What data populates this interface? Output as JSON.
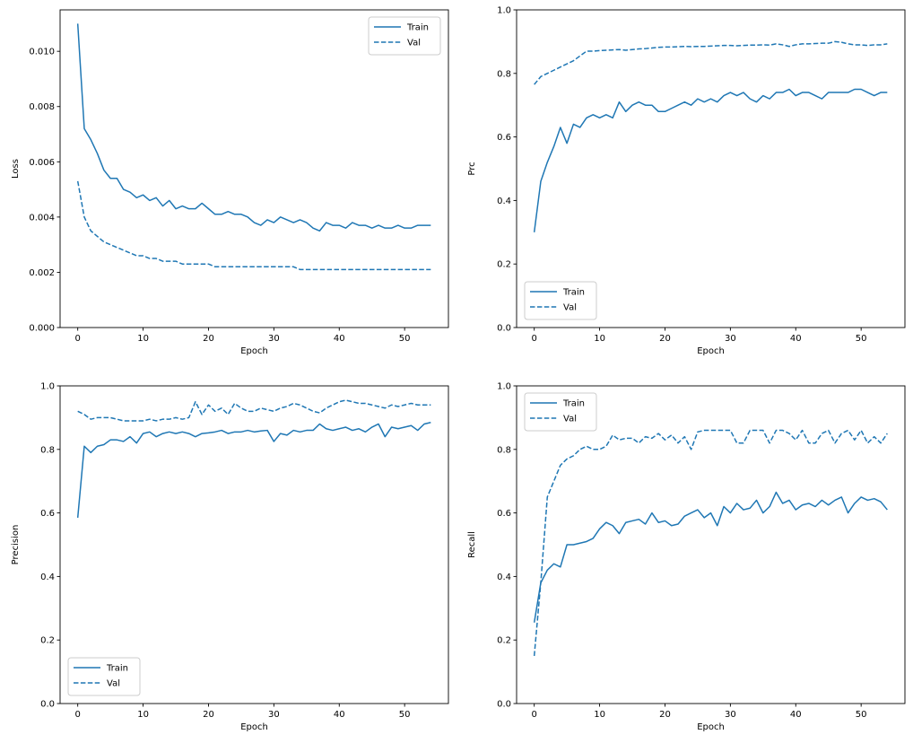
{
  "figure": {
    "background": "#ffffff",
    "accent_color": "#1f77b4"
  },
  "chart_data": [
    {
      "id": "loss",
      "type": "line",
      "title": "",
      "xlabel": "Epoch",
      "ylabel": "Loss",
      "xlim": [
        -2.7,
        56.7
      ],
      "ylim": [
        0,
        0.0115
      ],
      "xticks": [
        0,
        10,
        20,
        30,
        40,
        50
      ],
      "yticks": [
        0.0,
        0.002,
        0.004,
        0.006,
        0.008,
        0.01
      ],
      "ytick_decimals": 3,
      "grid": false,
      "legend_loc": "top-right",
      "legend_labels": [
        "Train",
        "Val"
      ],
      "series": [
        {
          "name": "Train",
          "style": "solid",
          "color": "#1f77b4",
          "values": [
            0.011,
            0.0072,
            0.0068,
            0.0063,
            0.0057,
            0.0054,
            0.0054,
            0.005,
            0.0049,
            0.0047,
            0.0048,
            0.0046,
            0.0047,
            0.0044,
            0.0046,
            0.0043,
            0.0044,
            0.0043,
            0.0043,
            0.0045,
            0.0043,
            0.0041,
            0.0041,
            0.0042,
            0.0041,
            0.0041,
            0.004,
            0.0038,
            0.0037,
            0.0039,
            0.0038,
            0.004,
            0.0039,
            0.0038,
            0.0039,
            0.0038,
            0.0036,
            0.0035,
            0.0038,
            0.0037,
            0.0037,
            0.0036,
            0.0038,
            0.0037,
            0.0037,
            0.0036,
            0.0037,
            0.0036,
            0.0036,
            0.0037,
            0.0036,
            0.0036,
            0.0037,
            0.0037,
            0.0037
          ]
        },
        {
          "name": "Val",
          "style": "dashed",
          "color": "#1f77b4",
          "values": [
            0.0053,
            0.004,
            0.0035,
            0.0033,
            0.0031,
            0.003,
            0.0029,
            0.0028,
            0.0027,
            0.0026,
            0.0026,
            0.0025,
            0.0025,
            0.0024,
            0.0024,
            0.0024,
            0.0023,
            0.0023,
            0.0023,
            0.0023,
            0.0023,
            0.0022,
            0.0022,
            0.0022,
            0.0022,
            0.0022,
            0.0022,
            0.0022,
            0.0022,
            0.0022,
            0.0022,
            0.0022,
            0.0022,
            0.0022,
            0.0021,
            0.0021,
            0.0021,
            0.0021,
            0.0021,
            0.0021,
            0.0021,
            0.0021,
            0.0021,
            0.0021,
            0.0021,
            0.0021,
            0.0021,
            0.0021,
            0.0021,
            0.0021,
            0.0021,
            0.0021,
            0.0021,
            0.0021,
            0.0021
          ]
        }
      ]
    },
    {
      "id": "prc",
      "type": "line",
      "title": "",
      "xlabel": "Epoch",
      "ylabel": "Prc",
      "xlim": [
        -2.7,
        56.7
      ],
      "ylim": [
        0,
        1.0
      ],
      "xticks": [
        0,
        10,
        20,
        30,
        40,
        50
      ],
      "yticks": [
        0.0,
        0.2,
        0.4,
        0.6,
        0.8,
        1.0
      ],
      "ytick_decimals": 1,
      "grid": false,
      "legend_loc": "bottom-left",
      "legend_labels": [
        "Train",
        "Val"
      ],
      "series": [
        {
          "name": "Train",
          "style": "solid",
          "color": "#1f77b4",
          "values": [
            0.3,
            0.46,
            0.52,
            0.57,
            0.63,
            0.58,
            0.64,
            0.63,
            0.66,
            0.67,
            0.66,
            0.67,
            0.66,
            0.71,
            0.68,
            0.7,
            0.71,
            0.7,
            0.7,
            0.68,
            0.68,
            0.69,
            0.7,
            0.71,
            0.7,
            0.72,
            0.71,
            0.72,
            0.71,
            0.73,
            0.74,
            0.73,
            0.74,
            0.72,
            0.71,
            0.73,
            0.72,
            0.74,
            0.74,
            0.75,
            0.73,
            0.74,
            0.74,
            0.73,
            0.72,
            0.74,
            0.74,
            0.74,
            0.74,
            0.75,
            0.75,
            0.74,
            0.73,
            0.74,
            0.74
          ]
        },
        {
          "name": "Val",
          "style": "dashed",
          "color": "#1f77b4",
          "values": [
            0.765,
            0.79,
            0.8,
            0.81,
            0.82,
            0.83,
            0.84,
            0.855,
            0.87,
            0.87,
            0.872,
            0.873,
            0.874,
            0.875,
            0.873,
            0.875,
            0.877,
            0.878,
            0.88,
            0.882,
            0.883,
            0.883,
            0.884,
            0.885,
            0.884,
            0.885,
            0.885,
            0.886,
            0.887,
            0.888,
            0.888,
            0.887,
            0.888,
            0.889,
            0.889,
            0.89,
            0.889,
            0.893,
            0.89,
            0.885,
            0.89,
            0.893,
            0.893,
            0.894,
            0.895,
            0.895,
            0.9,
            0.898,
            0.893,
            0.89,
            0.89,
            0.888,
            0.89,
            0.89,
            0.893
          ]
        }
      ]
    },
    {
      "id": "precision",
      "type": "line",
      "title": "",
      "xlabel": "Epoch",
      "ylabel": "Precision",
      "xlim": [
        -2.7,
        56.7
      ],
      "ylim": [
        0,
        1.0
      ],
      "xticks": [
        0,
        10,
        20,
        30,
        40,
        50
      ],
      "yticks": [
        0.0,
        0.2,
        0.4,
        0.6,
        0.8,
        1.0
      ],
      "ytick_decimals": 1,
      "grid": false,
      "legend_loc": "bottom-left",
      "legend_labels": [
        "Train",
        "Val"
      ],
      "series": [
        {
          "name": "Train",
          "style": "solid",
          "color": "#1f77b4",
          "values": [
            0.585,
            0.81,
            0.79,
            0.81,
            0.815,
            0.83,
            0.83,
            0.825,
            0.84,
            0.82,
            0.85,
            0.855,
            0.84,
            0.85,
            0.855,
            0.85,
            0.855,
            0.85,
            0.84,
            0.85,
            0.852,
            0.855,
            0.86,
            0.85,
            0.855,
            0.855,
            0.86,
            0.855,
            0.858,
            0.86,
            0.825,
            0.85,
            0.845,
            0.86,
            0.855,
            0.86,
            0.86,
            0.88,
            0.865,
            0.86,
            0.865,
            0.87,
            0.86,
            0.865,
            0.855,
            0.87,
            0.88,
            0.84,
            0.87,
            0.865,
            0.87,
            0.875,
            0.86,
            0.88,
            0.885
          ]
        },
        {
          "name": "Val",
          "style": "dashed",
          "color": "#1f77b4",
          "values": [
            0.92,
            0.91,
            0.895,
            0.9,
            0.9,
            0.9,
            0.895,
            0.89,
            0.89,
            0.89,
            0.89,
            0.895,
            0.89,
            0.895,
            0.895,
            0.9,
            0.895,
            0.9,
            0.95,
            0.91,
            0.94,
            0.92,
            0.93,
            0.91,
            0.945,
            0.93,
            0.92,
            0.92,
            0.93,
            0.925,
            0.92,
            0.93,
            0.935,
            0.945,
            0.94,
            0.93,
            0.92,
            0.915,
            0.93,
            0.94,
            0.95,
            0.955,
            0.95,
            0.945,
            0.945,
            0.94,
            0.935,
            0.93,
            0.94,
            0.935,
            0.94,
            0.945,
            0.94,
            0.94,
            0.94
          ]
        }
      ]
    },
    {
      "id": "recall",
      "type": "line",
      "title": "",
      "xlabel": "Epoch",
      "ylabel": "Recall",
      "xlim": [
        -2.7,
        56.7
      ],
      "ylim": [
        0,
        1.0
      ],
      "xticks": [
        0,
        10,
        20,
        30,
        40,
        50
      ],
      "yticks": [
        0.0,
        0.2,
        0.4,
        0.6,
        0.8,
        1.0
      ],
      "ytick_decimals": 1,
      "grid": false,
      "legend_loc": "top-left",
      "legend_labels": [
        "Train",
        "Val"
      ],
      "series": [
        {
          "name": "Train",
          "style": "solid",
          "color": "#1f77b4",
          "values": [
            0.255,
            0.38,
            0.42,
            0.44,
            0.43,
            0.5,
            0.5,
            0.505,
            0.51,
            0.52,
            0.55,
            0.57,
            0.56,
            0.535,
            0.57,
            0.575,
            0.58,
            0.565,
            0.6,
            0.57,
            0.575,
            0.56,
            0.565,
            0.59,
            0.6,
            0.61,
            0.585,
            0.6,
            0.56,
            0.62,
            0.6,
            0.63,
            0.61,
            0.615,
            0.64,
            0.6,
            0.62,
            0.665,
            0.63,
            0.64,
            0.61,
            0.625,
            0.63,
            0.62,
            0.64,
            0.625,
            0.64,
            0.65,
            0.6,
            0.63,
            0.65,
            0.64,
            0.645,
            0.635,
            0.61
          ]
        },
        {
          "name": "Val",
          "style": "dashed",
          "color": "#1f77b4",
          "values": [
            0.15,
            0.38,
            0.65,
            0.7,
            0.75,
            0.77,
            0.78,
            0.8,
            0.81,
            0.8,
            0.8,
            0.81,
            0.845,
            0.83,
            0.835,
            0.835,
            0.82,
            0.84,
            0.835,
            0.85,
            0.83,
            0.845,
            0.82,
            0.84,
            0.8,
            0.855,
            0.86,
            0.86,
            0.86,
            0.86,
            0.86,
            0.82,
            0.82,
            0.86,
            0.86,
            0.86,
            0.82,
            0.86,
            0.86,
            0.85,
            0.83,
            0.86,
            0.82,
            0.82,
            0.85,
            0.86,
            0.82,
            0.85,
            0.86,
            0.83,
            0.86,
            0.82,
            0.84,
            0.82,
            0.85
          ]
        }
      ]
    }
  ]
}
